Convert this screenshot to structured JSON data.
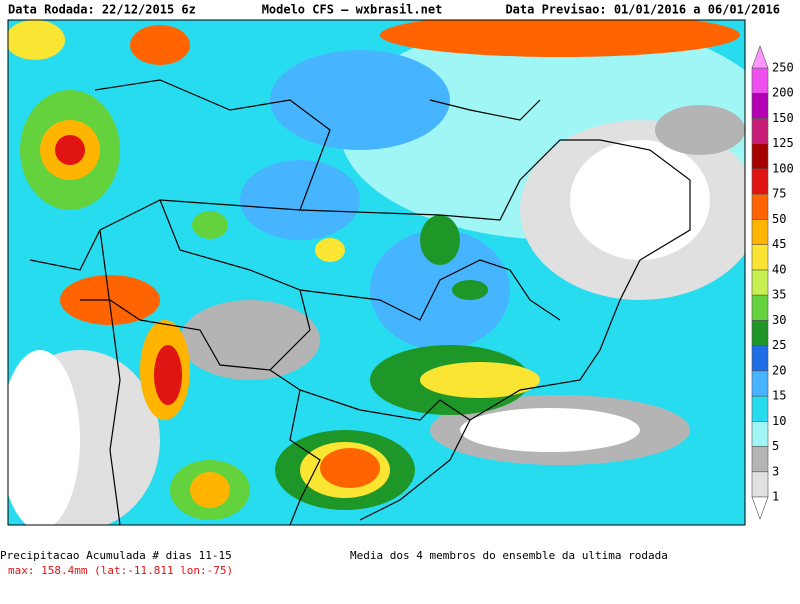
{
  "header": {
    "left": "Data Rodada: 22/12/2015 6z",
    "center": "Modelo CFS — wxbrasil.net",
    "right": "Data Previsao: 01/01/2016 a 06/01/2016"
  },
  "colorbar": {
    "labels": [
      "1",
      "3",
      "5",
      "10",
      "15",
      "20",
      "25",
      "30",
      "35",
      "40",
      "45",
      "50",
      "75",
      "100",
      "125",
      "150",
      "200",
      "250"
    ],
    "colors": [
      "#ffffff",
      "#e0e0e0",
      "#b4b4b4",
      "#a0f5f5",
      "#28dcf0",
      "#46b4ff",
      "#1e6ee6",
      "#1e9628",
      "#64d23c",
      "#c8f050",
      "#fae632",
      "#ffb400",
      "#ff6400",
      "#e11414",
      "#a50000",
      "#c81e78",
      "#b400b4",
      "#f050f0",
      "#ff96ff"
    ]
  },
  "footer": {
    "title": "Precipitacao Acumulada # dias 11-15",
    "max": "max: 158.4mm (lat:-11.811 lon:-75)",
    "note": "Media dos 4 membros do ensemble da ultima rodada"
  }
}
